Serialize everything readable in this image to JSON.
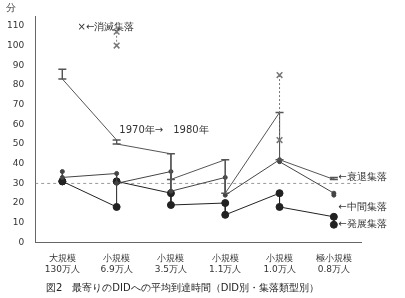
{
  "chart_data": {
    "type": "line",
    "title": "図2　最寄りのDIDへの平均到達時間（DID別・集落類型別）",
    "ylabel": "分",
    "categories": [
      "大規模\n130万人",
      "小規模\n6.9万人",
      "小規模\n3.5万人",
      "小規模\n1.1万人",
      "小規模\n1.0万人",
      "極小規模\n0.8万人"
    ],
    "series": [
      {
        "name": "消滅集落",
        "color": "#777777",
        "marker": "x",
        "line_style": "dotted",
        "values": [
          [
            null,
            null
          ],
          [
            107,
            100
          ],
          [
            null,
            null
          ],
          [
            null,
            null
          ],
          [
            85,
            52
          ],
          [
            null,
            null
          ]
        ]
      },
      {
        "name": "衰退集落",
        "color": "#555555",
        "marker": "line",
        "line_style": "solid",
        "values": [
          [
            88,
            83
          ],
          [
            52,
            50
          ],
          [
            45,
            32
          ],
          [
            42,
            25
          ],
          [
            66,
            42
          ],
          [
            32,
            33
          ]
        ]
      },
      {
        "name": "中間集落",
        "color": "#444444",
        "marker": "dot",
        "line_style": "solid",
        "values": [
          [
            36,
            33
          ],
          [
            35,
            30
          ],
          [
            36,
            26
          ],
          [
            33,
            24
          ],
          [
            42,
            41
          ],
          [
            25,
            24
          ]
        ]
      },
      {
        "name": "発展集落",
        "color": "#222222",
        "marker": "circle",
        "line_style": "solid",
        "values": [
          [
            31,
            31
          ],
          [
            18,
            31
          ],
          [
            25,
            19
          ],
          [
            20,
            14
          ],
          [
            25,
            18
          ],
          [
            13,
            9
          ]
        ]
      }
    ],
    "ylim": [
      0,
      115
    ],
    "yticks": [
      0,
      10,
      20,
      30,
      40,
      50,
      60,
      70,
      80,
      90,
      100,
      110
    ],
    "grid": false,
    "legend": false,
    "hline": 30,
    "annotations": [
      {
        "text": "×←消滅集落",
        "x": 0.28,
        "y": 109
      },
      {
        "text": "1970年→　1980年",
        "x": 1.05,
        "y": 57
      },
      {
        "text": "←衰退集落",
        "x": 5.08,
        "y": 33
      },
      {
        "text": "←中間集落",
        "x": 5.08,
        "y": 18
      },
      {
        "text": "←発展集落",
        "x": 5.08,
        "y": 9
      }
    ]
  }
}
